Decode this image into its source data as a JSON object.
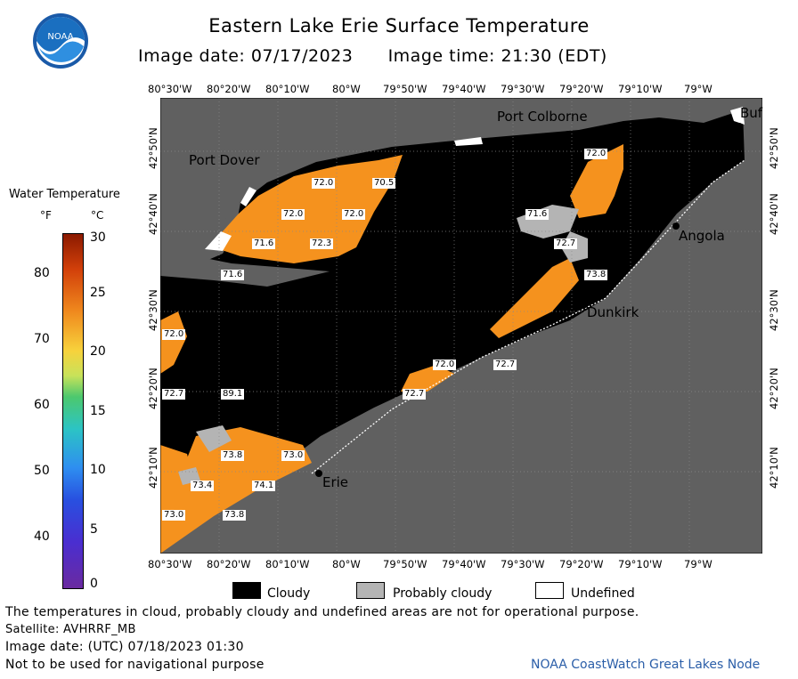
{
  "header": {
    "title": "Eastern Lake Erie Surface Temperature",
    "image_date_line": "Image date: 07/17/2023      Image time: 21:30 (EDT)",
    "logo_text": "NOAA"
  },
  "axes": {
    "lon_labels": [
      "80°30'W",
      "80°20'W",
      "80°10'W",
      "80°W",
      "79°50'W",
      "79°40'W",
      "79°30'W",
      "79°20'W",
      "79°10'W",
      "79°W"
    ],
    "lat_labels": [
      "42°50'N",
      "42°40'N",
      "42°30'N",
      "42°20'N",
      "42°10'N"
    ]
  },
  "legend": {
    "title": "Water Temperature",
    "unit_f": "°F",
    "unit_c": "°C",
    "f_ticks": [
      "80",
      "70",
      "60",
      "50",
      "40"
    ],
    "c_ticks": [
      "30",
      "25",
      "20",
      "15",
      "10",
      "5",
      "0"
    ]
  },
  "map": {
    "colors": {
      "land": "#606060",
      "cloud": "#000000",
      "water_warm": "#f5921e",
      "probably_cloudy": "#b4b4b4",
      "undefined": "#ffffff",
      "grid": "#8a8a8a"
    },
    "cities": [
      {
        "name": "Port Dover"
      },
      {
        "name": "Port Colborne"
      },
      {
        "name": "Buf"
      },
      {
        "name": "Angola"
      },
      {
        "name": "Dunkirk"
      },
      {
        "name": "Erie"
      }
    ],
    "temperature_labels": [
      "72.0",
      "70.5",
      "72.0",
      "72.0",
      "71.6",
      "72.3",
      "72.0",
      "71.6",
      "72.7",
      "73.8",
      "71.6",
      "72.0",
      "72.7",
      "72.0",
      "72.7",
      "72.7",
      "89.1",
      "73.8",
      "73.0",
      "73.4",
      "74.1",
      "73.0",
      "73.8"
    ]
  },
  "key": {
    "cloudy": "Cloudy",
    "probably_cloudy": "Probably cloudy",
    "undefined": "Undefined"
  },
  "footer": {
    "disclaimer": "The temperatures in cloud, probably cloudy and undefined areas are not for operational purpose.",
    "satellite": "Satellite: AVHRRF_MB",
    "utc_date": "Image date: (UTC) 07/18/2023  01:30",
    "navigation": "Not to be used for navigational purpose",
    "credit": "NOAA CoastWatch Great Lakes Node"
  }
}
